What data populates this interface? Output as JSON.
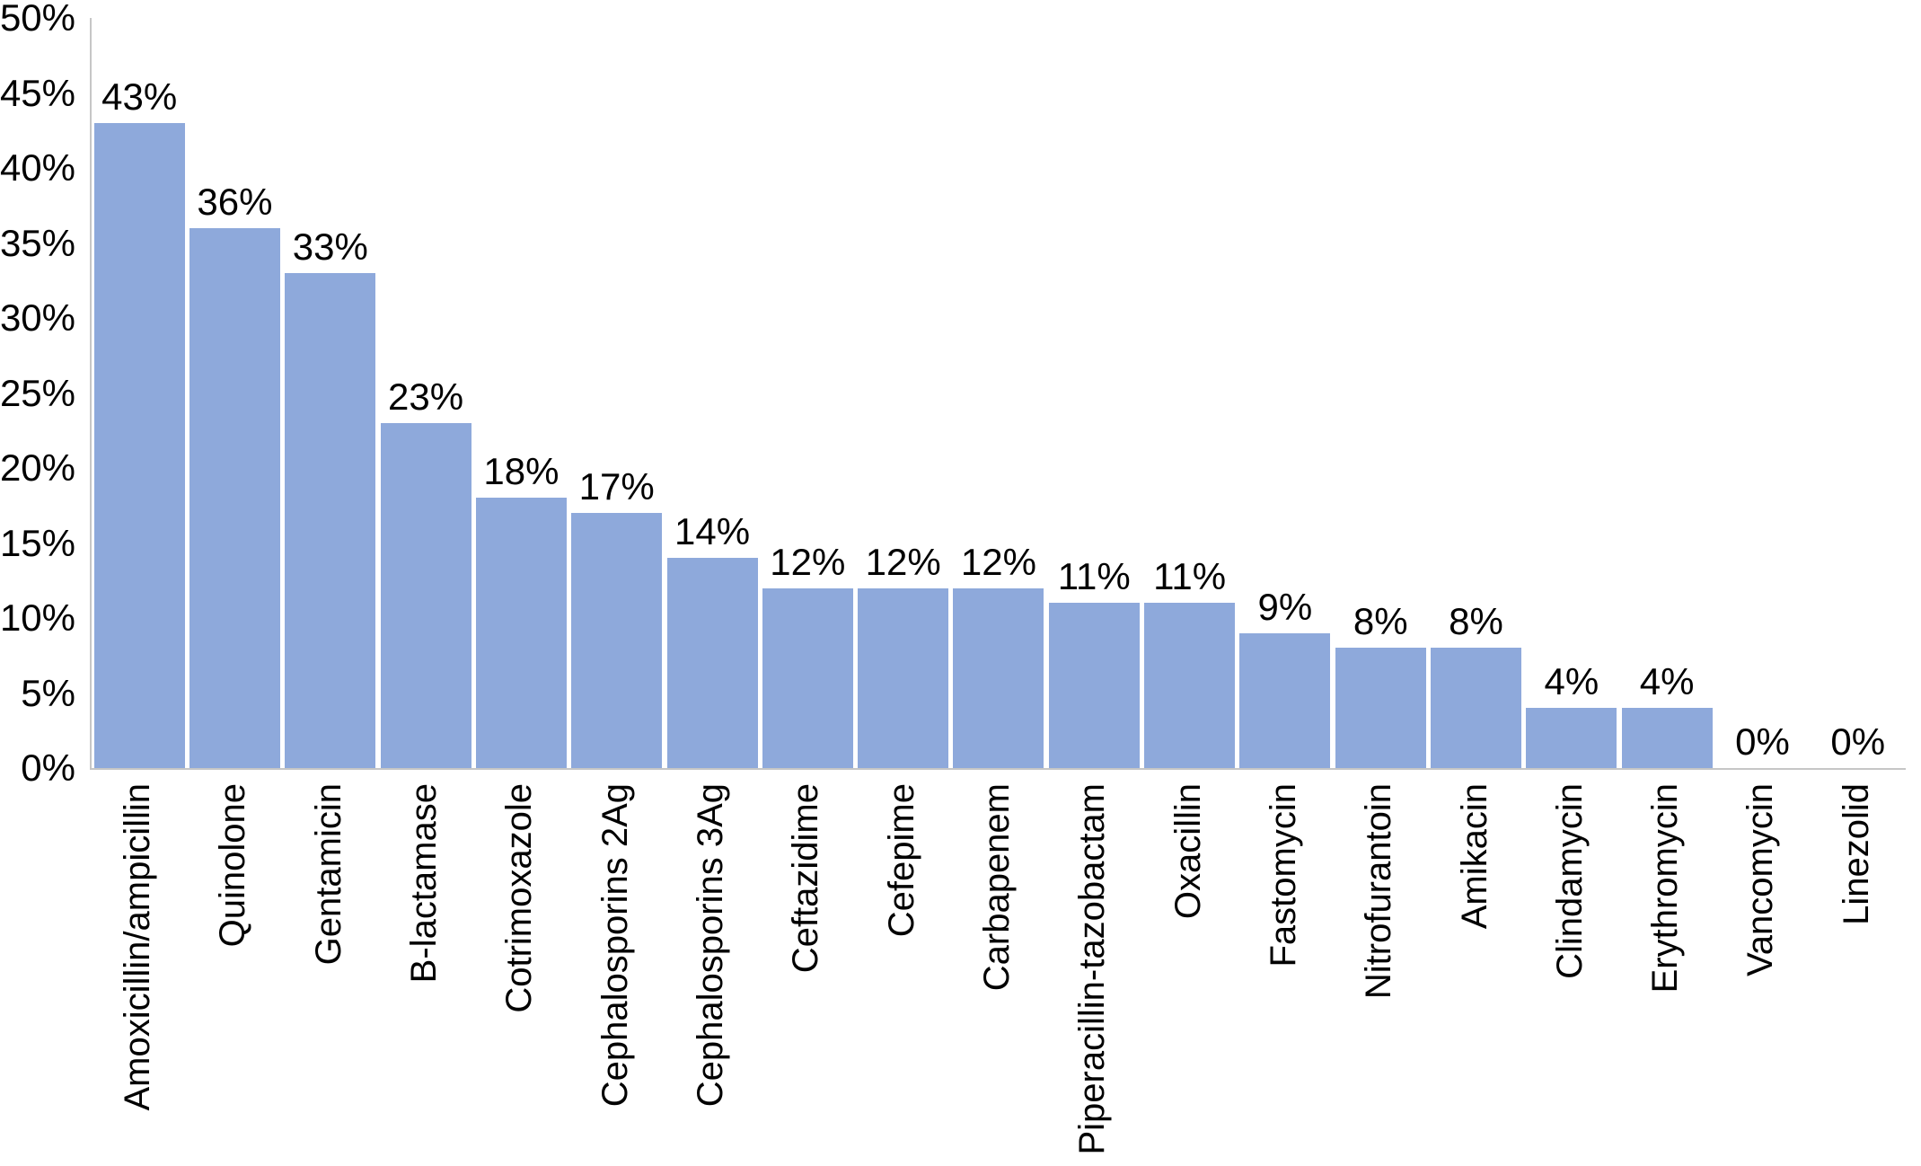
{
  "chart_data": {
    "type": "bar",
    "title": "",
    "xlabel": "",
    "ylabel": "",
    "categories": [
      "Amoxicillin/ampicillin",
      "Quinolone",
      "Gentamicin",
      "B-lactamase",
      "Cotrimoxazole",
      "Cephalosporins 2Ag",
      "Cephalosporins 3Ag",
      "Ceftazidime",
      "Cefepime",
      "Carbapenem",
      "Piperacillin-tazobactam",
      "Oxacillin",
      "Fastomycin",
      "Nitrofurantoin",
      "Amikacin",
      "Clindamycin",
      "Erythromycin",
      "Vancomycin",
      "Linezolid"
    ],
    "values": [
      43,
      36,
      33,
      23,
      18,
      17,
      14,
      12,
      12,
      12,
      11,
      11,
      9,
      8,
      8,
      4,
      4,
      0,
      0
    ],
    "value_labels": [
      "43%",
      "36%",
      "33%",
      "23%",
      "18%",
      "17%",
      "14%",
      "12%",
      "12%",
      "12%",
      "11%",
      "11%",
      "9%",
      "8%",
      "8%",
      "4%",
      "4%",
      "0%",
      "0%"
    ],
    "ylim": [
      0,
      50
    ],
    "y_ticks": [
      0,
      5,
      10,
      15,
      20,
      25,
      30,
      35,
      40,
      45,
      50
    ],
    "y_tick_labels": [
      "0%",
      "5%",
      "10%",
      "15%",
      "20%",
      "25%",
      "30%",
      "35%",
      "40%",
      "45%",
      "50%"
    ],
    "grid": false,
    "legend": false,
    "bar_color": "#8ea9db",
    "axis_color": "#c6c6c6",
    "label_color": "#000000"
  }
}
